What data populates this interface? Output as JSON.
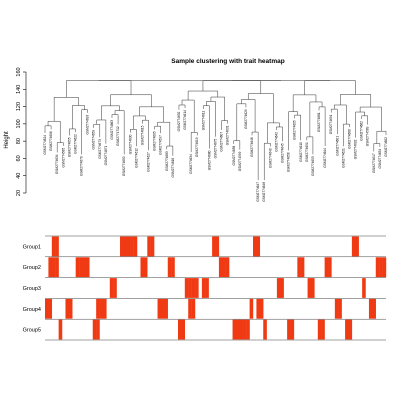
{
  "chart_data": [
    {
      "type": "dendrogram",
      "title": "Sample clustering with trait heatmap",
      "ylabel": "Height",
      "ylim": [
        20,
        160
      ],
      "y_ticks": [
        20,
        40,
        60,
        80,
        100,
        120,
        140,
        160
      ],
      "leaves": [
        "GSM2774624",
        "GSM2774606",
        "GSM2774634",
        "GSM2774585",
        "GSM2774655",
        "GSM2774622",
        "GSM2774670",
        "GSM2774693",
        "GSM2774659",
        "GSM2774673",
        "GSM2774671",
        "GSM2774663",
        "GSM2774712",
        "GSM2774650",
        "GSM2774630",
        "GSM2774612",
        "GSM2774615",
        "GSM2774627",
        "GSM2774605",
        "GSM2774597",
        "GSM2774683",
        "GSM2774616",
        "GSM2774632",
        "GSM2774614",
        "GSM2774634",
        "GSM2774619",
        "GSM2774611",
        "GSM2774680",
        "GSM2774675",
        "GSM2774607",
        "GSM2774631",
        "GSM2774638",
        "GSM2774599",
        "GSM2774629",
        "GSM2774646",
        "GSM2774647",
        "GSM2774648",
        "GSM2774640",
        "GSM2774642",
        "GSM2774645",
        "GSM2774658",
        "GSM2774605",
        "GSM2774610",
        "GSM2774651",
        "GSM2774653",
        "GSM2774681",
        "GSM2774644",
        "GSM2774691",
        "GSM2774601",
        "GSM2774621",
        "GSM2774666",
        "GSM2774602",
        "GSM2774662",
        "GSM2774589",
        "GSM2774617",
        "GSM2774654",
        "GSM2774602"
      ]
    },
    {
      "type": "heatmap",
      "rows": [
        "Group1",
        "Group2",
        "Group3",
        "Group4",
        "Group5"
      ],
      "color_on": "#f03a14",
      "color_off": "#ffffff",
      "n_columns": 100,
      "on_columns": [
        [
          2,
          3,
          22,
          23,
          24,
          25,
          26,
          30,
          31,
          49,
          50,
          61,
          62,
          90,
          91
        ],
        [
          1,
          2,
          3,
          9,
          10,
          11,
          12,
          28,
          29,
          36,
          37,
          51,
          52,
          53,
          74,
          75,
          82,
          83,
          97,
          98,
          99
        ],
        [
          19,
          20,
          41,
          42,
          43,
          44,
          46,
          47,
          68,
          69,
          77,
          78,
          93
        ],
        [
          0,
          1,
          6,
          7,
          15,
          16,
          17,
          33,
          34,
          35,
          42,
          43,
          60,
          62,
          63,
          85,
          86,
          95,
          96
        ],
        [
          4,
          14,
          15,
          39,
          40,
          55,
          56,
          57,
          58,
          59,
          64,
          71,
          72,
          80,
          81,
          88,
          89
        ]
      ]
    }
  ]
}
